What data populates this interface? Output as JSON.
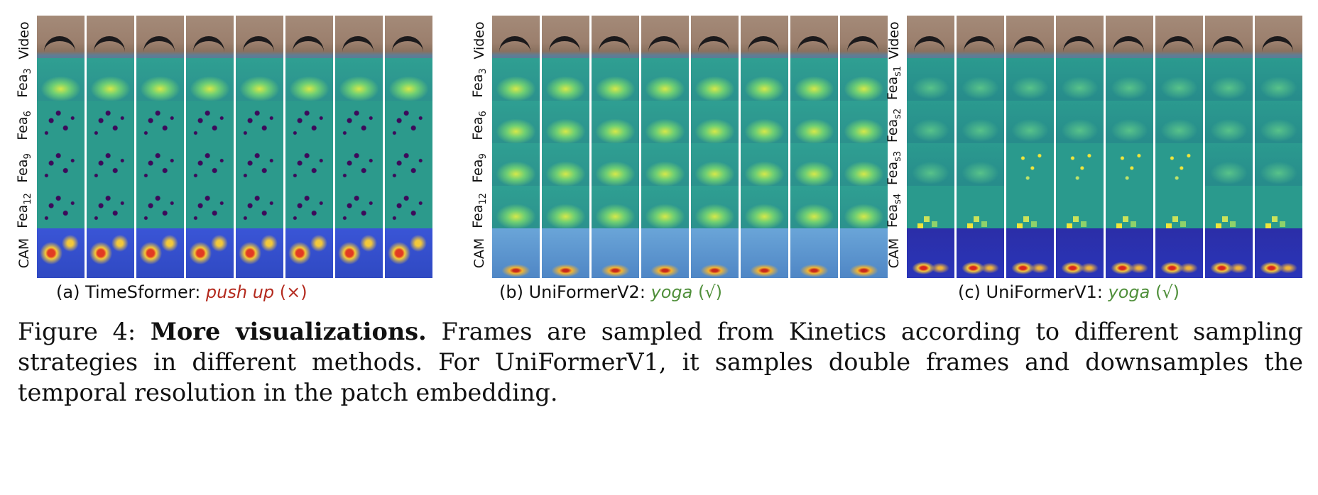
{
  "panels": [
    {
      "id": "a",
      "rows": [
        {
          "label": "Video",
          "sub": ""
        },
        {
          "label": "Fea",
          "sub": "3"
        },
        {
          "label": "Fea",
          "sub": "6"
        },
        {
          "label": "Fea",
          "sub": "9"
        },
        {
          "label": "Fea",
          "sub": "12"
        },
        {
          "label": "CAM",
          "sub": ""
        }
      ],
      "caption_prefix": "(a) TimeSformer: ",
      "prediction": "push up",
      "verdict": "(×)"
    },
    {
      "id": "b",
      "rows": [
        {
          "label": "Video",
          "sub": ""
        },
        {
          "label": "Fea",
          "sub": "3"
        },
        {
          "label": "Fea",
          "sub": "6"
        },
        {
          "label": "Fea",
          "sub": "9"
        },
        {
          "label": "Fea",
          "sub": "12"
        },
        {
          "label": "CAM",
          "sub": ""
        }
      ],
      "caption_prefix": "(b) UniFormerV2: ",
      "prediction": "yoga",
      "verdict": "(√)"
    },
    {
      "id": "c",
      "rows": [
        {
          "label": "Video",
          "sub": ""
        },
        {
          "label": "Fea",
          "sub": "s1"
        },
        {
          "label": "Fea",
          "sub": "s2"
        },
        {
          "label": "Fea",
          "sub": "s3"
        },
        {
          "label": "Fea",
          "sub": "s4"
        },
        {
          "label": "CAM",
          "sub": ""
        }
      ],
      "caption_prefix": "(c) UniFormerV1: ",
      "prediction": "yoga",
      "verdict": "(√)"
    }
  ],
  "figure_caption": {
    "label": "Figure 4:",
    "bold": "More visualizations.",
    "text": "Frames are sampled from Kinetics according to different sampling strategies in different methods. For UniFormerV1, it samples double frames and downsamples the temporal resolution in the patch embedding."
  }
}
